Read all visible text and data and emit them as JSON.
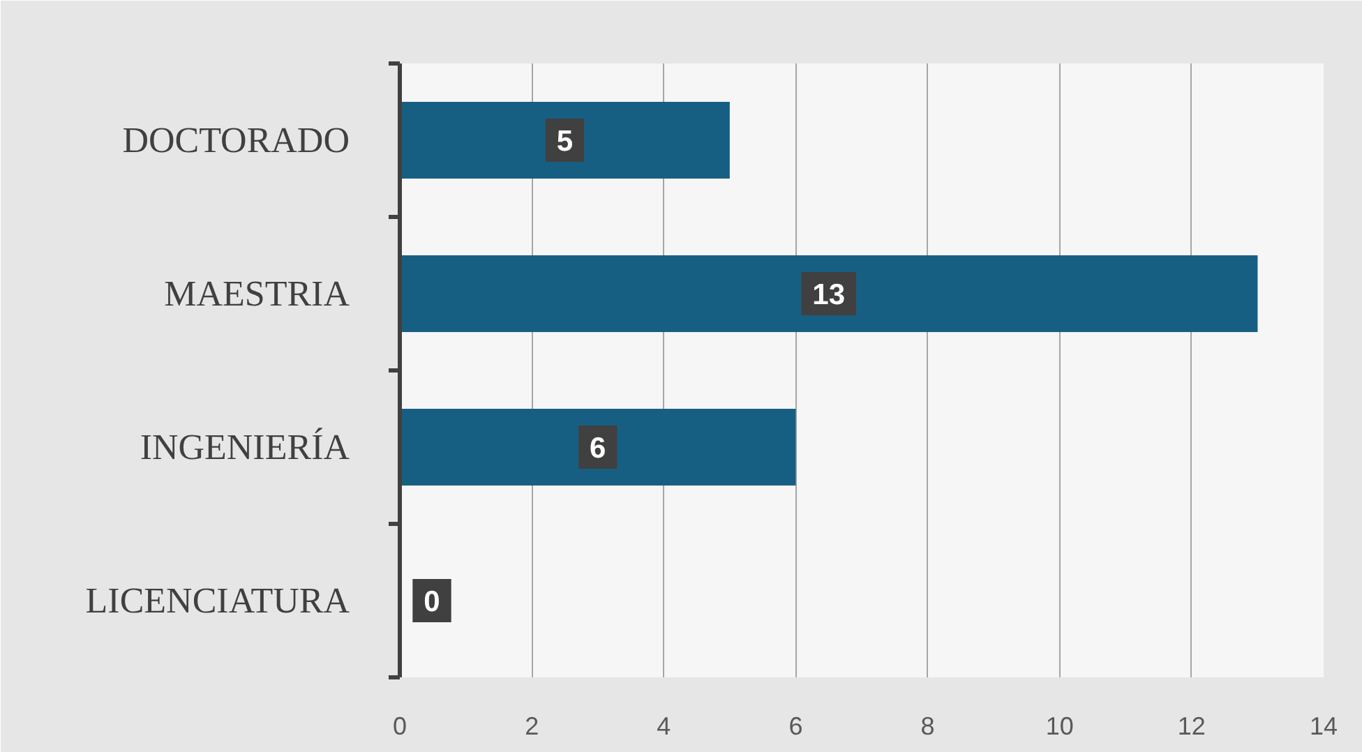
{
  "chart_data": {
    "type": "bar",
    "orientation": "horizontal",
    "categories": [
      "DOCTORADO",
      "MAESTRIA",
      "INGENIERÍA",
      "LICENCIATURA"
    ],
    "values": [
      5,
      13,
      6,
      0
    ],
    "color": "#175f82",
    "xlim": [
      0,
      14
    ],
    "xticks": [
      0,
      2,
      4,
      6,
      8,
      10,
      12,
      14
    ],
    "grid": "x",
    "data_labels": true
  }
}
